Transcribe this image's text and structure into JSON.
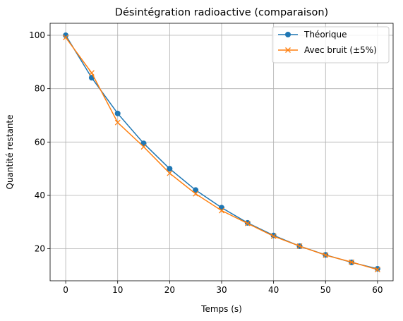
{
  "chart_data": {
    "type": "line",
    "title": "Désintégration radioactive (comparaison)",
    "xlabel": "Temps (s)",
    "ylabel": "Quantité restante",
    "xlim": [
      -3,
      63
    ],
    "ylim": [
      8,
      104.5
    ],
    "xticks": [
      0,
      10,
      20,
      30,
      40,
      50,
      60
    ],
    "yticks": [
      20,
      40,
      60,
      80,
      100
    ],
    "grid": true,
    "legend_position": "top-right",
    "x": [
      0,
      5,
      10,
      15,
      20,
      25,
      30,
      35,
      40,
      45,
      50,
      55,
      60
    ],
    "series": [
      {
        "name": "Théorique",
        "color": "#1f77b4",
        "marker": "circle",
        "values": [
          100,
          84.1,
          70.7,
          59.5,
          50.0,
          42.0,
          35.4,
          29.7,
          25.0,
          21.0,
          17.7,
          14.9,
          12.5
        ]
      },
      {
        "name": "Avec bruit (±5%)",
        "color": "#ff7f0e",
        "marker": "x",
        "values": [
          99.2,
          85.9,
          67.3,
          58.2,
          48.3,
          40.6,
          34.3,
          29.5,
          24.7,
          21.0,
          17.6,
          15.0,
          12.2
        ]
      }
    ]
  }
}
